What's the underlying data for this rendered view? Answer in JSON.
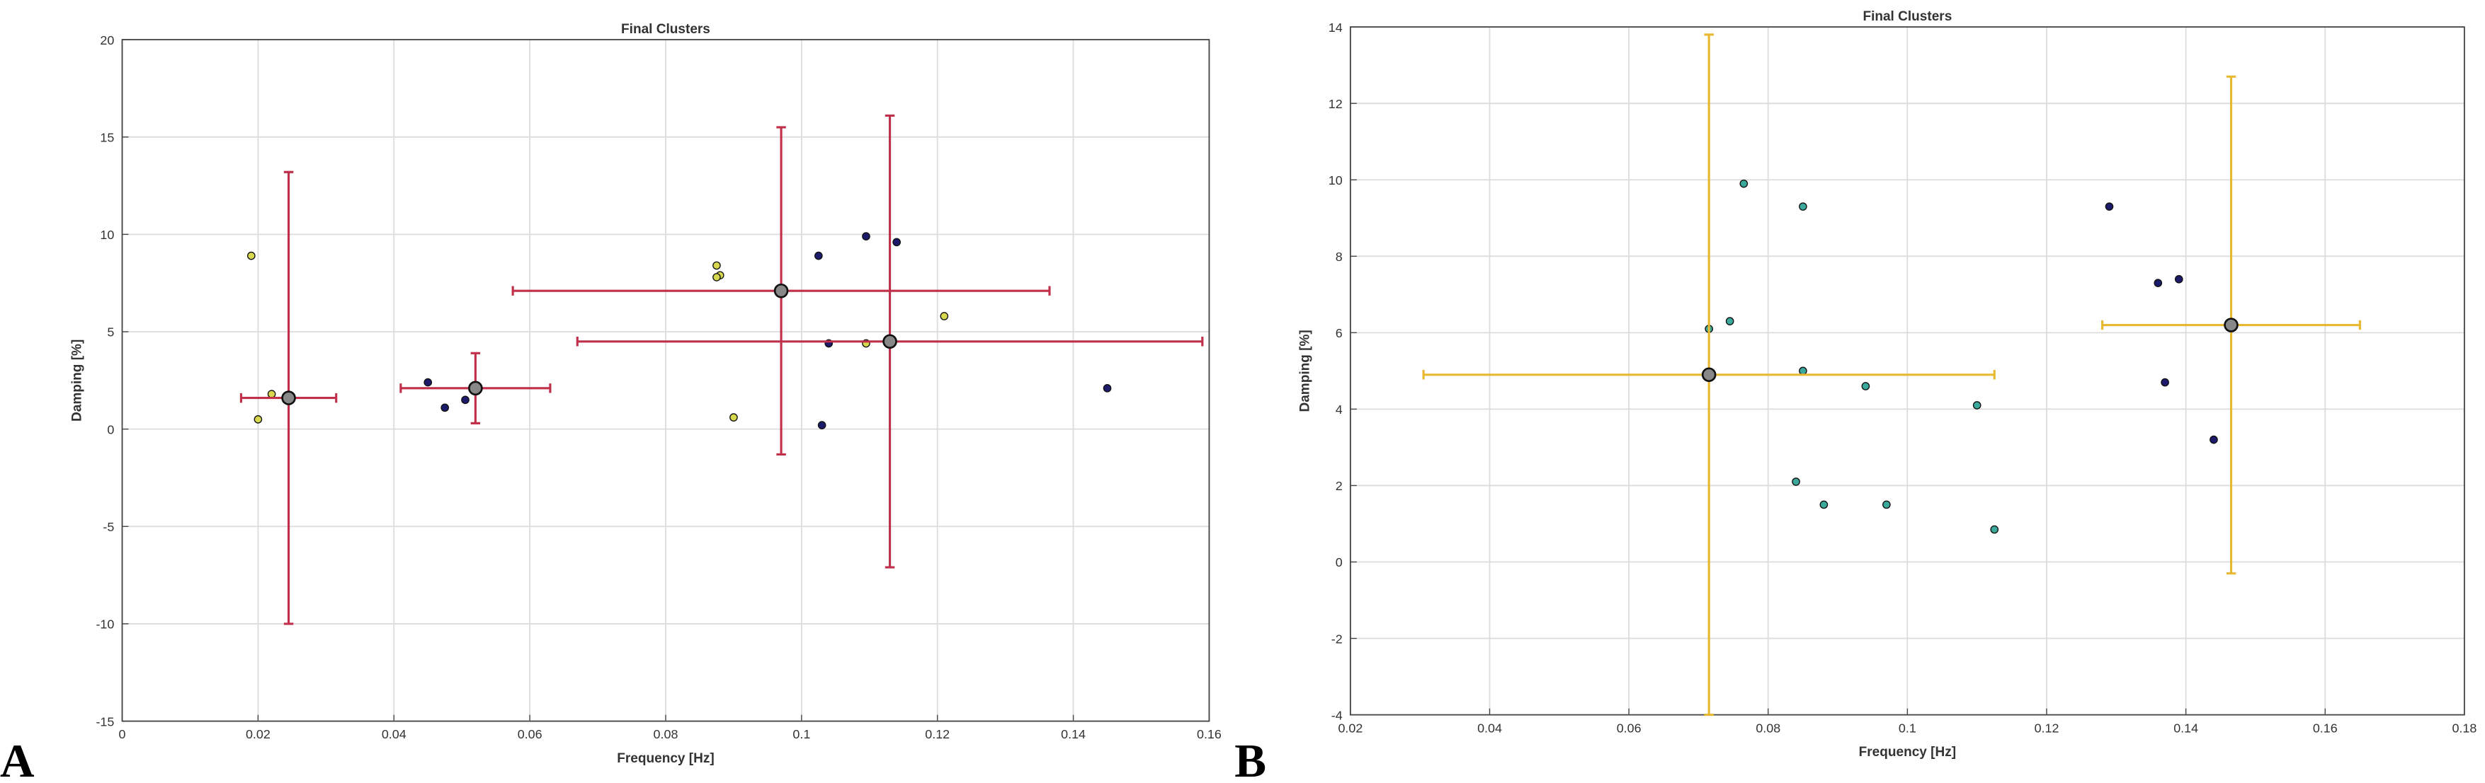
{
  "chart_data": [
    {
      "type": "scatter",
      "panel_label": "A",
      "title": "Final Clusters",
      "xlabel": "Frequency [Hz]",
      "ylabel": "Damping [%]",
      "xlim": [
        0,
        0.16
      ],
      "ylim": [
        -15,
        20
      ],
      "xticks": [
        0,
        0.02,
        0.04,
        0.06,
        0.08,
        0.1,
        0.12,
        0.14,
        0.16
      ],
      "yticks": [
        -15,
        -10,
        -5,
        0,
        5,
        10,
        15,
        20
      ],
      "grid": true,
      "series": [
        {
          "color": "#d8d850",
          "x": [
            0.019,
            0.022,
            0.02,
            0.0875,
            0.088,
            0.0875,
            0.09,
            0.1095,
            0.121
          ],
          "values": [
            8.9,
            1.8,
            0.5,
            8.4,
            7.9,
            7.8,
            0.6,
            4.4,
            5.8
          ]
        },
        {
          "color": "#1c1a6a",
          "x": [
            0.045,
            0.0475,
            0.0505,
            0.1025,
            0.1095,
            0.114,
            0.104,
            0.103,
            0.145
          ],
          "values": [
            2.4,
            1.1,
            1.5,
            8.9,
            9.9,
            9.6,
            4.4,
            0.2,
            2.1
          ]
        }
      ],
      "centers": {
        "color": "#c0304a",
        "x": [
          0.0245,
          0.052,
          0.097,
          0.113
        ],
        "values": [
          1.6,
          2.1,
          7.1,
          4.5
        ],
        "xerr": [
          0.007,
          0.011,
          0.0395,
          0.046
        ],
        "yerr": [
          11.6,
          1.8,
          8.4,
          11.6
        ]
      }
    },
    {
      "type": "scatter",
      "panel_label": "B",
      "title": "Final Clusters",
      "xlabel": "Frequency [Hz]",
      "ylabel": "Damping [%]",
      "xlim": [
        0.02,
        0.18
      ],
      "ylim": [
        -4,
        14
      ],
      "xticks": [
        0.02,
        0.04,
        0.06,
        0.08,
        0.1,
        0.12,
        0.14,
        0.16,
        0.18
      ],
      "yticks": [
        -4,
        -2,
        0,
        2,
        4,
        6,
        8,
        10,
        12,
        14
      ],
      "grid": true,
      "series": [
        {
          "color": "#3aa89a",
          "x": [
            0.0765,
            0.085,
            0.0745,
            0.0715,
            0.085,
            0.094,
            0.11,
            0.084,
            0.088,
            0.097,
            0.1125
          ],
          "values": [
            9.9,
            9.3,
            6.3,
            6.1,
            5.0,
            4.6,
            4.1,
            2.1,
            1.5,
            1.5,
            0.85
          ]
        },
        {
          "color": "#1c1a6a",
          "x": [
            0.129,
            0.136,
            0.139,
            0.137,
            0.144
          ],
          "values": [
            9.3,
            7.3,
            7.4,
            4.7,
            3.2
          ]
        }
      ],
      "centers": {
        "color": "#e8b830",
        "x": [
          0.0715,
          0.1465
        ],
        "values": [
          4.9,
          6.2
        ],
        "xerr": [
          0.041,
          0.0185
        ],
        "yerr": [
          8.9,
          6.5
        ]
      }
    }
  ]
}
